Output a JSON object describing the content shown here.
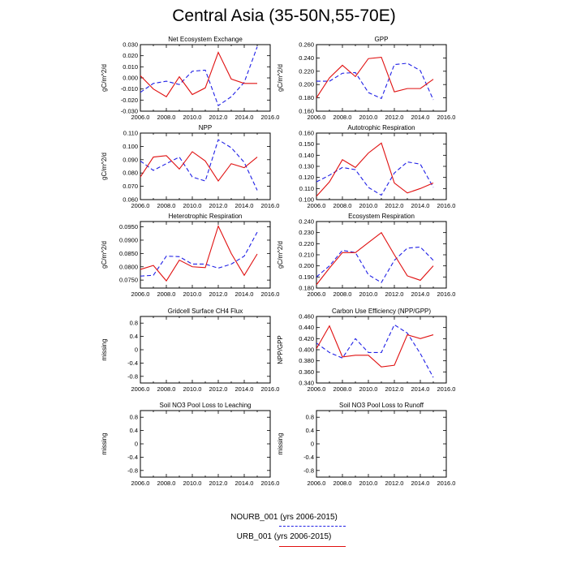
{
  "title": "Central Asia (35-50N,55-70E)",
  "colors": {
    "nourb": "#1f1fe6",
    "urb": "#e01010",
    "axis": "#000000"
  },
  "legend": [
    {
      "label": "NOURB_001 (yrs 2006-2015)",
      "color": "#1f1fe6",
      "dash": true
    },
    {
      "label": "URB_001 (yrs 2006-2015)",
      "color": "#e01010",
      "dash": false
    }
  ],
  "chart_data": [
    {
      "type": "line",
      "title": "Net Ecosystem Exchange",
      "ylabel": "gC/m^2/d",
      "xlim": [
        2006,
        2016
      ],
      "ylim": [
        -0.03,
        0.03
      ],
      "xticks": [
        "2006.0",
        "2008.0",
        "2010.0",
        "2012.0",
        "2014.0",
        "2016.0"
      ],
      "yticks": [
        "-0.030",
        "-0.020",
        "-0.010",
        "0.000",
        "0.010",
        "0.020",
        "0.030"
      ],
      "x": [
        2006,
        2007,
        2008,
        2009,
        2010,
        2011,
        2012,
        2013,
        2014,
        2015
      ],
      "series": [
        {
          "name": "NOURB_001",
          "values": [
            -0.013,
            -0.005,
            -0.003,
            -0.006,
            0.006,
            0.007,
            -0.025,
            -0.017,
            -0.004,
            0.028
          ]
        },
        {
          "name": "URB_001",
          "values": [
            0.002,
            -0.01,
            -0.017,
            0.001,
            -0.015,
            -0.009,
            0.023,
            -0.001,
            -0.005,
            -0.005
          ]
        }
      ]
    },
    {
      "type": "line",
      "title": "GPP",
      "ylabel": "gC/m^2/d",
      "xlim": [
        2006,
        2016
      ],
      "ylim": [
        0.16,
        0.26
      ],
      "xticks": [
        "2006.0",
        "2008.0",
        "2010.0",
        "2012.0",
        "2014.0",
        "2016.0"
      ],
      "yticks": [
        "0.160",
        "0.180",
        "0.200",
        "0.220",
        "0.240",
        "0.260"
      ],
      "x": [
        2006,
        2007,
        2008,
        2009,
        2010,
        2011,
        2012,
        2013,
        2014,
        2015
      ],
      "series": [
        {
          "name": "NOURB_001",
          "values": [
            0.205,
            0.205,
            0.217,
            0.218,
            0.188,
            0.179,
            0.23,
            0.232,
            0.221,
            0.177
          ]
        },
        {
          "name": "URB_001",
          "values": [
            0.18,
            0.21,
            0.229,
            0.212,
            0.239,
            0.241,
            0.189,
            0.194,
            0.194,
            0.208
          ]
        }
      ]
    },
    {
      "type": "line",
      "title": "NPP",
      "ylabel": "gC/m^2/d",
      "xlim": [
        2006,
        2016
      ],
      "ylim": [
        0.06,
        0.11
      ],
      "xticks": [
        "2006.0",
        "2008.0",
        "2010.0",
        "2012.0",
        "2014.0",
        "2016.0"
      ],
      "yticks": [
        "0.060",
        "0.070",
        "0.080",
        "0.090",
        "0.100",
        "0.110"
      ],
      "x": [
        2006,
        2007,
        2008,
        2009,
        2010,
        2011,
        2012,
        2013,
        2014,
        2015
      ],
      "series": [
        {
          "name": "NOURB_001",
          "values": [
            0.089,
            0.082,
            0.087,
            0.092,
            0.077,
            0.074,
            0.105,
            0.099,
            0.088,
            0.067
          ]
        },
        {
          "name": "URB_001",
          "values": [
            0.077,
            0.092,
            0.093,
            0.083,
            0.096,
            0.089,
            0.074,
            0.087,
            0.084,
            0.092
          ]
        }
      ]
    },
    {
      "type": "line",
      "title": "Autotrophic Respiration",
      "ylabel": "",
      "xlim": [
        2006,
        2016
      ],
      "ylim": [
        0.1,
        0.16
      ],
      "xticks": [
        "2006.0",
        "2008.0",
        "2010.0",
        "2012.0",
        "2014.0",
        "2016.0"
      ],
      "yticks": [
        "0.100",
        "0.110",
        "0.120",
        "0.130",
        "0.140",
        "0.150",
        "0.160"
      ],
      "x": [
        2006,
        2007,
        2008,
        2009,
        2010,
        2011,
        2012,
        2013,
        2014,
        2015
      ],
      "series": [
        {
          "name": "NOURB_001",
          "values": [
            0.116,
            0.122,
            0.129,
            0.127,
            0.111,
            0.104,
            0.124,
            0.134,
            0.132,
            0.111
          ]
        },
        {
          "name": "URB_001",
          "values": [
            0.103,
            0.116,
            0.136,
            0.129,
            0.142,
            0.151,
            0.115,
            0.106,
            0.11,
            0.115
          ]
        }
      ]
    },
    {
      "type": "line",
      "title": "Heterotrophic Respiration",
      "ylabel": "gC/m^2/d",
      "xlim": [
        2006,
        2016
      ],
      "ylim": [
        0.072,
        0.097
      ],
      "xticks": [
        "2006.0",
        "2008.0",
        "2010.0",
        "2012.0",
        "2014.0",
        "2016.0"
      ],
      "yticks": [
        "0.0750",
        "0.0800",
        "0.0850",
        "0.0900",
        "0.0950"
      ],
      "x": [
        2006,
        2007,
        2008,
        2009,
        2010,
        2011,
        2012,
        2013,
        2014,
        2015
      ],
      "series": [
        {
          "name": "NOURB_001",
          "values": [
            0.0765,
            0.0768,
            0.084,
            0.0838,
            0.081,
            0.081,
            0.0795,
            0.081,
            0.084,
            0.093
          ]
        },
        {
          "name": "URB_001",
          "values": [
            0.079,
            0.0805,
            0.0747,
            0.0825,
            0.08,
            0.0797,
            0.0953,
            0.085,
            0.0768,
            0.0848
          ]
        }
      ]
    },
    {
      "type": "line",
      "title": "Ecosystem Respiration",
      "ylabel": "gC/m^2/d",
      "xlim": [
        2006,
        2016
      ],
      "ylim": [
        0.18,
        0.24
      ],
      "xticks": [
        "2006.0",
        "2008.0",
        "2010.0",
        "2012.0",
        "2014.0",
        "2016.0"
      ],
      "yticks": [
        "0.180",
        "0.190",
        "0.200",
        "0.210",
        "0.220",
        "0.230",
        "0.240"
      ],
      "x": [
        2006,
        2007,
        2008,
        2009,
        2010,
        2011,
        2012,
        2013,
        2014,
        2015
      ],
      "series": [
        {
          "name": "NOURB_001",
          "values": [
            0.19,
            0.2,
            0.214,
            0.212,
            0.192,
            0.185,
            0.205,
            0.216,
            0.217,
            0.205
          ]
        },
        {
          "name": "URB_001",
          "values": [
            0.183,
            0.198,
            0.212,
            0.212,
            0.221,
            0.23,
            0.21,
            0.191,
            0.187,
            0.2
          ]
        }
      ]
    },
    {
      "type": "line",
      "title": "Gridcell Surface CH4 Flux",
      "ylabel": "missing",
      "xlim": [
        2006,
        2016
      ],
      "ylim": [
        -1.0,
        1.0
      ],
      "xticks": [
        "2006.0",
        "2008.0",
        "2010.0",
        "2012.0",
        "2014.0",
        "2016.0"
      ],
      "yticks": [
        "-0.8",
        "-0.4",
        "0",
        "0.4",
        "0.8"
      ],
      "x": [],
      "series": []
    },
    {
      "type": "line",
      "title": "Carbon Use Efficiency (NPP/GPP)",
      "ylabel": "NPP/GPP",
      "xlim": [
        2006,
        2016
      ],
      "ylim": [
        0.34,
        0.46
      ],
      "xticks": [
        "2006.0",
        "2008.0",
        "2010.0",
        "2012.0",
        "2014.0",
        "2016.0"
      ],
      "yticks": [
        "0.340",
        "0.360",
        "0.380",
        "0.400",
        "0.420",
        "0.440",
        "0.460"
      ],
      "x": [
        2006,
        2007,
        2008,
        2009,
        2010,
        2011,
        2012,
        2013,
        2014,
        2015
      ],
      "series": [
        {
          "name": "NOURB_001",
          "values": [
            0.412,
            0.395,
            0.385,
            0.42,
            0.395,
            0.395,
            0.445,
            0.43,
            0.393,
            0.35
          ]
        },
        {
          "name": "URB_001",
          "values": [
            0.402,
            0.443,
            0.387,
            0.39,
            0.39,
            0.369,
            0.372,
            0.427,
            0.42,
            0.427
          ]
        }
      ]
    },
    {
      "type": "line",
      "title": "Soil NO3 Pool Loss to Leaching",
      "ylabel": "missing",
      "xlim": [
        2006,
        2016
      ],
      "ylim": [
        -1.0,
        1.0
      ],
      "xticks": [
        "2006.0",
        "2008.0",
        "2010.0",
        "2012.0",
        "2014.0",
        "2016.0"
      ],
      "yticks": [
        "-0.8",
        "-0.4",
        "0",
        "0.4",
        "0.8"
      ],
      "x": [],
      "series": []
    },
    {
      "type": "line",
      "title": "Soil NO3 Pool Loss to Runoff",
      "ylabel": "missing",
      "xlim": [
        2006,
        2016
      ],
      "ylim": [
        -1.0,
        1.0
      ],
      "xticks": [
        "2006.0",
        "2008.0",
        "2010.0",
        "2012.0",
        "2014.0",
        "2016.0"
      ],
      "yticks": [
        "-0.8",
        "-0.4",
        "0",
        "0.4",
        "0.8"
      ],
      "x": [],
      "series": []
    }
  ]
}
